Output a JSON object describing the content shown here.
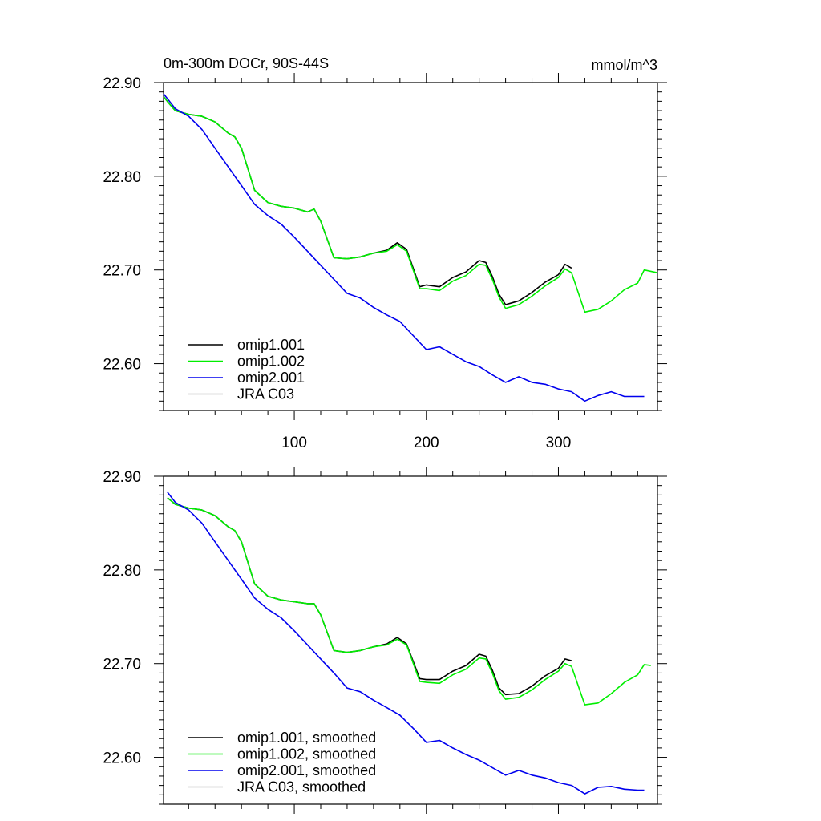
{
  "title": "0m-300m DOCr, 90S-44S",
  "units": "mmol/m^3",
  "chart_data": [
    {
      "type": "line",
      "panel": "top",
      "title": "0m-300m DOCr, 90S-44S",
      "units": "mmol/m^3",
      "xlim": [
        1,
        375
      ],
      "ylim": [
        22.55,
        22.9
      ],
      "xticks": [
        100,
        200,
        300
      ],
      "xtick_labels": [
        "100",
        "200",
        "300"
      ],
      "yticks": [
        22.6,
        22.7,
        22.8,
        22.9
      ],
      "ytick_labels": [
        "22.60",
        "22.70",
        "22.80",
        "22.90"
      ],
      "legend_position": "bottom-left",
      "series": [
        {
          "name": "omip1.001",
          "color": "#000000",
          "x": [
            1,
            5,
            10,
            20,
            30,
            40,
            50,
            55,
            60,
            70,
            80,
            90,
            100,
            110,
            115,
            120,
            130,
            140,
            150,
            160,
            170,
            178,
            185,
            195,
            200,
            210,
            220,
            230,
            240,
            245,
            250,
            255,
            260,
            270,
            280,
            290,
            300,
            305,
            310
          ],
          "y": [
            22.885,
            22.878,
            22.87,
            22.866,
            22.864,
            22.858,
            22.846,
            22.842,
            22.83,
            22.785,
            22.772,
            22.768,
            22.766,
            22.762,
            22.765,
            22.752,
            22.713,
            22.712,
            22.714,
            22.718,
            22.721,
            22.729,
            22.722,
            22.682,
            22.684,
            22.682,
            22.692,
            22.698,
            22.71,
            22.708,
            22.693,
            22.674,
            22.663,
            22.667,
            22.676,
            22.687,
            22.695,
            22.706,
            22.702
          ]
        },
        {
          "name": "omip1.002",
          "color": "#00ee00",
          "x": [
            1,
            5,
            10,
            20,
            30,
            40,
            50,
            55,
            60,
            70,
            80,
            90,
            100,
            110,
            115,
            120,
            130,
            140,
            150,
            160,
            170,
            178,
            185,
            195,
            200,
            210,
            220,
            230,
            240,
            245,
            250,
            255,
            260,
            270,
            280,
            290,
            300,
            305,
            310,
            320,
            330,
            340,
            350,
            360,
            365,
            375
          ],
          "y": [
            22.885,
            22.878,
            22.87,
            22.866,
            22.864,
            22.858,
            22.846,
            22.842,
            22.83,
            22.785,
            22.772,
            22.768,
            22.766,
            22.762,
            22.765,
            22.752,
            22.713,
            22.712,
            22.714,
            22.718,
            22.72,
            22.727,
            22.72,
            22.68,
            22.68,
            22.678,
            22.688,
            22.694,
            22.706,
            22.705,
            22.69,
            22.671,
            22.659,
            22.663,
            22.672,
            22.683,
            22.692,
            22.701,
            22.697,
            22.655,
            22.658,
            22.667,
            22.679,
            22.686,
            22.7,
            22.697
          ]
        },
        {
          "name": "omip2.001",
          "color": "#0000ee",
          "x": [
            1,
            10,
            20,
            30,
            40,
            50,
            60,
            70,
            80,
            90,
            100,
            110,
            120,
            130,
            140,
            150,
            160,
            170,
            180,
            190,
            200,
            210,
            220,
            230,
            240,
            250,
            260,
            270,
            280,
            290,
            300,
            310,
            320,
            330,
            340,
            350,
            360,
            365
          ],
          "y": [
            22.888,
            22.872,
            22.864,
            22.85,
            22.83,
            22.81,
            22.79,
            22.77,
            22.758,
            22.749,
            22.735,
            22.72,
            22.705,
            22.69,
            22.675,
            22.67,
            22.66,
            22.652,
            22.645,
            22.63,
            22.615,
            22.618,
            22.61,
            22.602,
            22.597,
            22.588,
            22.58,
            22.586,
            22.58,
            22.578,
            22.573,
            22.57,
            22.56,
            22.566,
            22.57,
            22.565,
            22.565,
            22.565
          ]
        },
        {
          "name": "JRA C03",
          "color": "#c0c0c0",
          "x": [],
          "y": []
        }
      ]
    },
    {
      "type": "line",
      "panel": "bottom",
      "xlim": [
        1,
        375
      ],
      "ylim": [
        22.55,
        22.9
      ],
      "xticks": [
        100,
        200,
        300
      ],
      "yticks": [
        22.6,
        22.7,
        22.8,
        22.9
      ],
      "ytick_labels": [
        "22.60",
        "22.70",
        "22.80",
        "22.90"
      ],
      "legend_position": "bottom-left",
      "series": [
        {
          "name": "omip1.001, smoothed",
          "color": "#000000",
          "x": [
            4,
            10,
            20,
            30,
            40,
            50,
            55,
            60,
            70,
            80,
            90,
            100,
            110,
            115,
            120,
            130,
            140,
            150,
            160,
            170,
            178,
            185,
            195,
            200,
            210,
            220,
            230,
            240,
            245,
            250,
            255,
            260,
            270,
            280,
            290,
            300,
            305,
            310
          ],
          "y": [
            22.877,
            22.87,
            22.866,
            22.864,
            22.858,
            22.846,
            22.842,
            22.83,
            22.785,
            22.772,
            22.768,
            22.766,
            22.764,
            22.764,
            22.752,
            22.714,
            22.712,
            22.714,
            22.718,
            22.721,
            22.728,
            22.721,
            22.684,
            22.683,
            22.683,
            22.692,
            22.698,
            22.71,
            22.708,
            22.693,
            22.674,
            22.667,
            22.668,
            22.676,
            22.687,
            22.695,
            22.705,
            22.703
          ]
        },
        {
          "name": "omip1.002, smoothed",
          "color": "#00ee00",
          "x": [
            4,
            10,
            20,
            30,
            40,
            50,
            55,
            60,
            70,
            80,
            90,
            100,
            110,
            115,
            120,
            130,
            140,
            150,
            160,
            170,
            178,
            185,
            195,
            200,
            210,
            220,
            230,
            240,
            245,
            250,
            255,
            260,
            270,
            280,
            290,
            300,
            305,
            310,
            320,
            330,
            340,
            350,
            360,
            365,
            370
          ],
          "y": [
            22.877,
            22.87,
            22.866,
            22.864,
            22.858,
            22.846,
            22.842,
            22.83,
            22.785,
            22.772,
            22.768,
            22.766,
            22.764,
            22.764,
            22.752,
            22.714,
            22.712,
            22.714,
            22.718,
            22.72,
            22.726,
            22.72,
            22.681,
            22.68,
            22.679,
            22.688,
            22.694,
            22.706,
            22.705,
            22.69,
            22.671,
            22.662,
            22.664,
            22.672,
            22.683,
            22.692,
            22.7,
            22.697,
            22.656,
            22.658,
            22.668,
            22.68,
            22.688,
            22.699,
            22.698
          ]
        },
        {
          "name": "omip2.001, smoothed",
          "color": "#0000ee",
          "x": [
            4,
            10,
            20,
            30,
            40,
            50,
            60,
            70,
            80,
            90,
            100,
            110,
            120,
            130,
            140,
            150,
            160,
            170,
            180,
            190,
            200,
            210,
            220,
            230,
            240,
            250,
            260,
            270,
            280,
            290,
            300,
            310,
            320,
            330,
            340,
            350,
            360,
            365
          ],
          "y": [
            22.883,
            22.872,
            22.864,
            22.85,
            22.83,
            22.81,
            22.79,
            22.77,
            22.758,
            22.749,
            22.735,
            22.72,
            22.705,
            22.69,
            22.674,
            22.67,
            22.661,
            22.653,
            22.645,
            22.631,
            22.616,
            22.618,
            22.61,
            22.603,
            22.597,
            22.589,
            22.581,
            22.586,
            22.581,
            22.578,
            22.573,
            22.57,
            22.561,
            22.568,
            22.569,
            22.566,
            22.565,
            22.565
          ]
        },
        {
          "name": "JRA C03, smoothed",
          "color": "#c0c0c0",
          "x": [],
          "y": []
        }
      ]
    }
  ]
}
